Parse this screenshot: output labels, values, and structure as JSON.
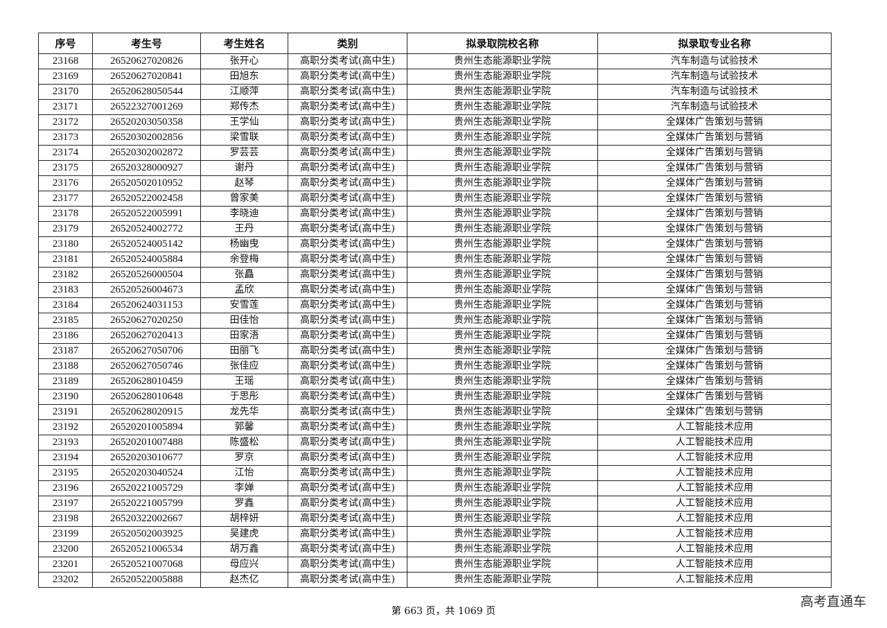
{
  "headers": [
    "序号",
    "考生号",
    "考生姓名",
    "类别",
    "拟录取院校名称",
    "拟录取专业名称"
  ],
  "rows": [
    [
      "23168",
      "26520627020826",
      "张开心",
      "高职分类考试(高中生)",
      "贵州生态能源职业学院",
      "汽车制造与试验技术"
    ],
    [
      "23169",
      "26520627020841",
      "田旭东",
      "高职分类考试(高中生)",
      "贵州生态能源职业学院",
      "汽车制造与试验技术"
    ],
    [
      "23170",
      "26520628050544",
      "江顺萍",
      "高职分类考试(高中生)",
      "贵州生态能源职业学院",
      "汽车制造与试验技术"
    ],
    [
      "23171",
      "26522327001269",
      "郑传杰",
      "高职分类考试(高中生)",
      "贵州生态能源职业学院",
      "汽车制造与试验技术"
    ],
    [
      "23172",
      "26520203050358",
      "王学仙",
      "高职分类考试(高中生)",
      "贵州生态能源职业学院",
      "全媒体广告策划与营销"
    ],
    [
      "23173",
      "26520302002856",
      "梁雪联",
      "高职分类考试(高中生)",
      "贵州生态能源职业学院",
      "全媒体广告策划与营销"
    ],
    [
      "23174",
      "26520302002872",
      "罗芸芸",
      "高职分类考试(高中生)",
      "贵州生态能源职业学院",
      "全媒体广告策划与营销"
    ],
    [
      "23175",
      "26520328000927",
      "谢丹",
      "高职分类考试(高中生)",
      "贵州生态能源职业学院",
      "全媒体广告策划与营销"
    ],
    [
      "23176",
      "26520502010952",
      "赵琴",
      "高职分类考试(高中生)",
      "贵州生态能源职业学院",
      "全媒体广告策划与营销"
    ],
    [
      "23177",
      "26520522002458",
      "曾家美",
      "高职分类考试(高中生)",
      "贵州生态能源职业学院",
      "全媒体广告策划与营销"
    ],
    [
      "23178",
      "26520522005991",
      "李晓迪",
      "高职分类考试(高中生)",
      "贵州生态能源职业学院",
      "全媒体广告策划与营销"
    ],
    [
      "23179",
      "26520524002772",
      "王丹",
      "高职分类考试(高中生)",
      "贵州生态能源职业学院",
      "全媒体广告策划与营销"
    ],
    [
      "23180",
      "26520524005142",
      "杨幽曳",
      "高职分类考试(高中生)",
      "贵州生态能源职业学院",
      "全媒体广告策划与营销"
    ],
    [
      "23181",
      "26520524005884",
      "余登梅",
      "高职分类考试(高中生)",
      "贵州生态能源职业学院",
      "全媒体广告策划与营销"
    ],
    [
      "23182",
      "26520526000504",
      "张矗",
      "高职分类考试(高中生)",
      "贵州生态能源职业学院",
      "全媒体广告策划与营销"
    ],
    [
      "23183",
      "26520526004673",
      "孟欣",
      "高职分类考试(高中生)",
      "贵州生态能源职业学院",
      "全媒体广告策划与营销"
    ],
    [
      "23184",
      "26520624031153",
      "安雪莲",
      "高职分类考试(高中生)",
      "贵州生态能源职业学院",
      "全媒体广告策划与营销"
    ],
    [
      "23185",
      "26520627020250",
      "田佳怡",
      "高职分类考试(高中生)",
      "贵州生态能源职业学院",
      "全媒体广告策划与营销"
    ],
    [
      "23186",
      "26520627020413",
      "田家浯",
      "高职分类考试(高中生)",
      "贵州生态能源职业学院",
      "全媒体广告策划与营销"
    ],
    [
      "23187",
      "26520627050706",
      "田丽飞",
      "高职分类考试(高中生)",
      "贵州生态能源职业学院",
      "全媒体广告策划与营销"
    ],
    [
      "23188",
      "26520627050746",
      "张佳应",
      "高职分类考试(高中生)",
      "贵州生态能源职业学院",
      "全媒体广告策划与营销"
    ],
    [
      "23189",
      "26520628010459",
      "王瑶",
      "高职分类考试(高中生)",
      "贵州生态能源职业学院",
      "全媒体广告策划与营销"
    ],
    [
      "23190",
      "26520628010648",
      "于思彤",
      "高职分类考试(高中生)",
      "贵州生态能源职业学院",
      "全媒体广告策划与营销"
    ],
    [
      "23191",
      "26520628020915",
      "龙先华",
      "高职分类考试(高中生)",
      "贵州生态能源职业学院",
      "全媒体广告策划与营销"
    ],
    [
      "23192",
      "26520201005894",
      "郭馨",
      "高职分类考试(高中生)",
      "贵州生态能源职业学院",
      "人工智能技术应用"
    ],
    [
      "23193",
      "26520201007488",
      "陈盛松",
      "高职分类考试(高中生)",
      "贵州生态能源职业学院",
      "人工智能技术应用"
    ],
    [
      "23194",
      "26520203010677",
      "罗京",
      "高职分类考试(高中生)",
      "贵州生态能源职业学院",
      "人工智能技术应用"
    ],
    [
      "23195",
      "26520203040524",
      "江怡",
      "高职分类考试(高中生)",
      "贵州生态能源职业学院",
      "人工智能技术应用"
    ],
    [
      "23196",
      "26520221005729",
      "李婵",
      "高职分类考试(高中生)",
      "贵州生态能源职业学院",
      "人工智能技术应用"
    ],
    [
      "23197",
      "26520221005799",
      "罗鑫",
      "高职分类考试(高中生)",
      "贵州生态能源职业学院",
      "人工智能技术应用"
    ],
    [
      "23198",
      "26520322002667",
      "胡梓妍",
      "高职分类考试(高中生)",
      "贵州生态能源职业学院",
      "人工智能技术应用"
    ],
    [
      "23199",
      "26520502003925",
      "吴建虎",
      "高职分类考试(高中生)",
      "贵州生态能源职业学院",
      "人工智能技术应用"
    ],
    [
      "23200",
      "26520521006534",
      "胡万鑫",
      "高职分类考试(高中生)",
      "贵州生态能源职业学院",
      "人工智能技术应用"
    ],
    [
      "23201",
      "26520521007068",
      "母应兴",
      "高职分类考试(高中生)",
      "贵州生态能源职业学院",
      "人工智能技术应用"
    ],
    [
      "23202",
      "26520522005888",
      "赵杰亿",
      "高职分类考试(高中生)",
      "贵州生态能源职业学院",
      "人工智能技术应用"
    ]
  ],
  "footer": {
    "page_text": "第 663 页，共 1069 页"
  },
  "watermark": "高考直通车"
}
